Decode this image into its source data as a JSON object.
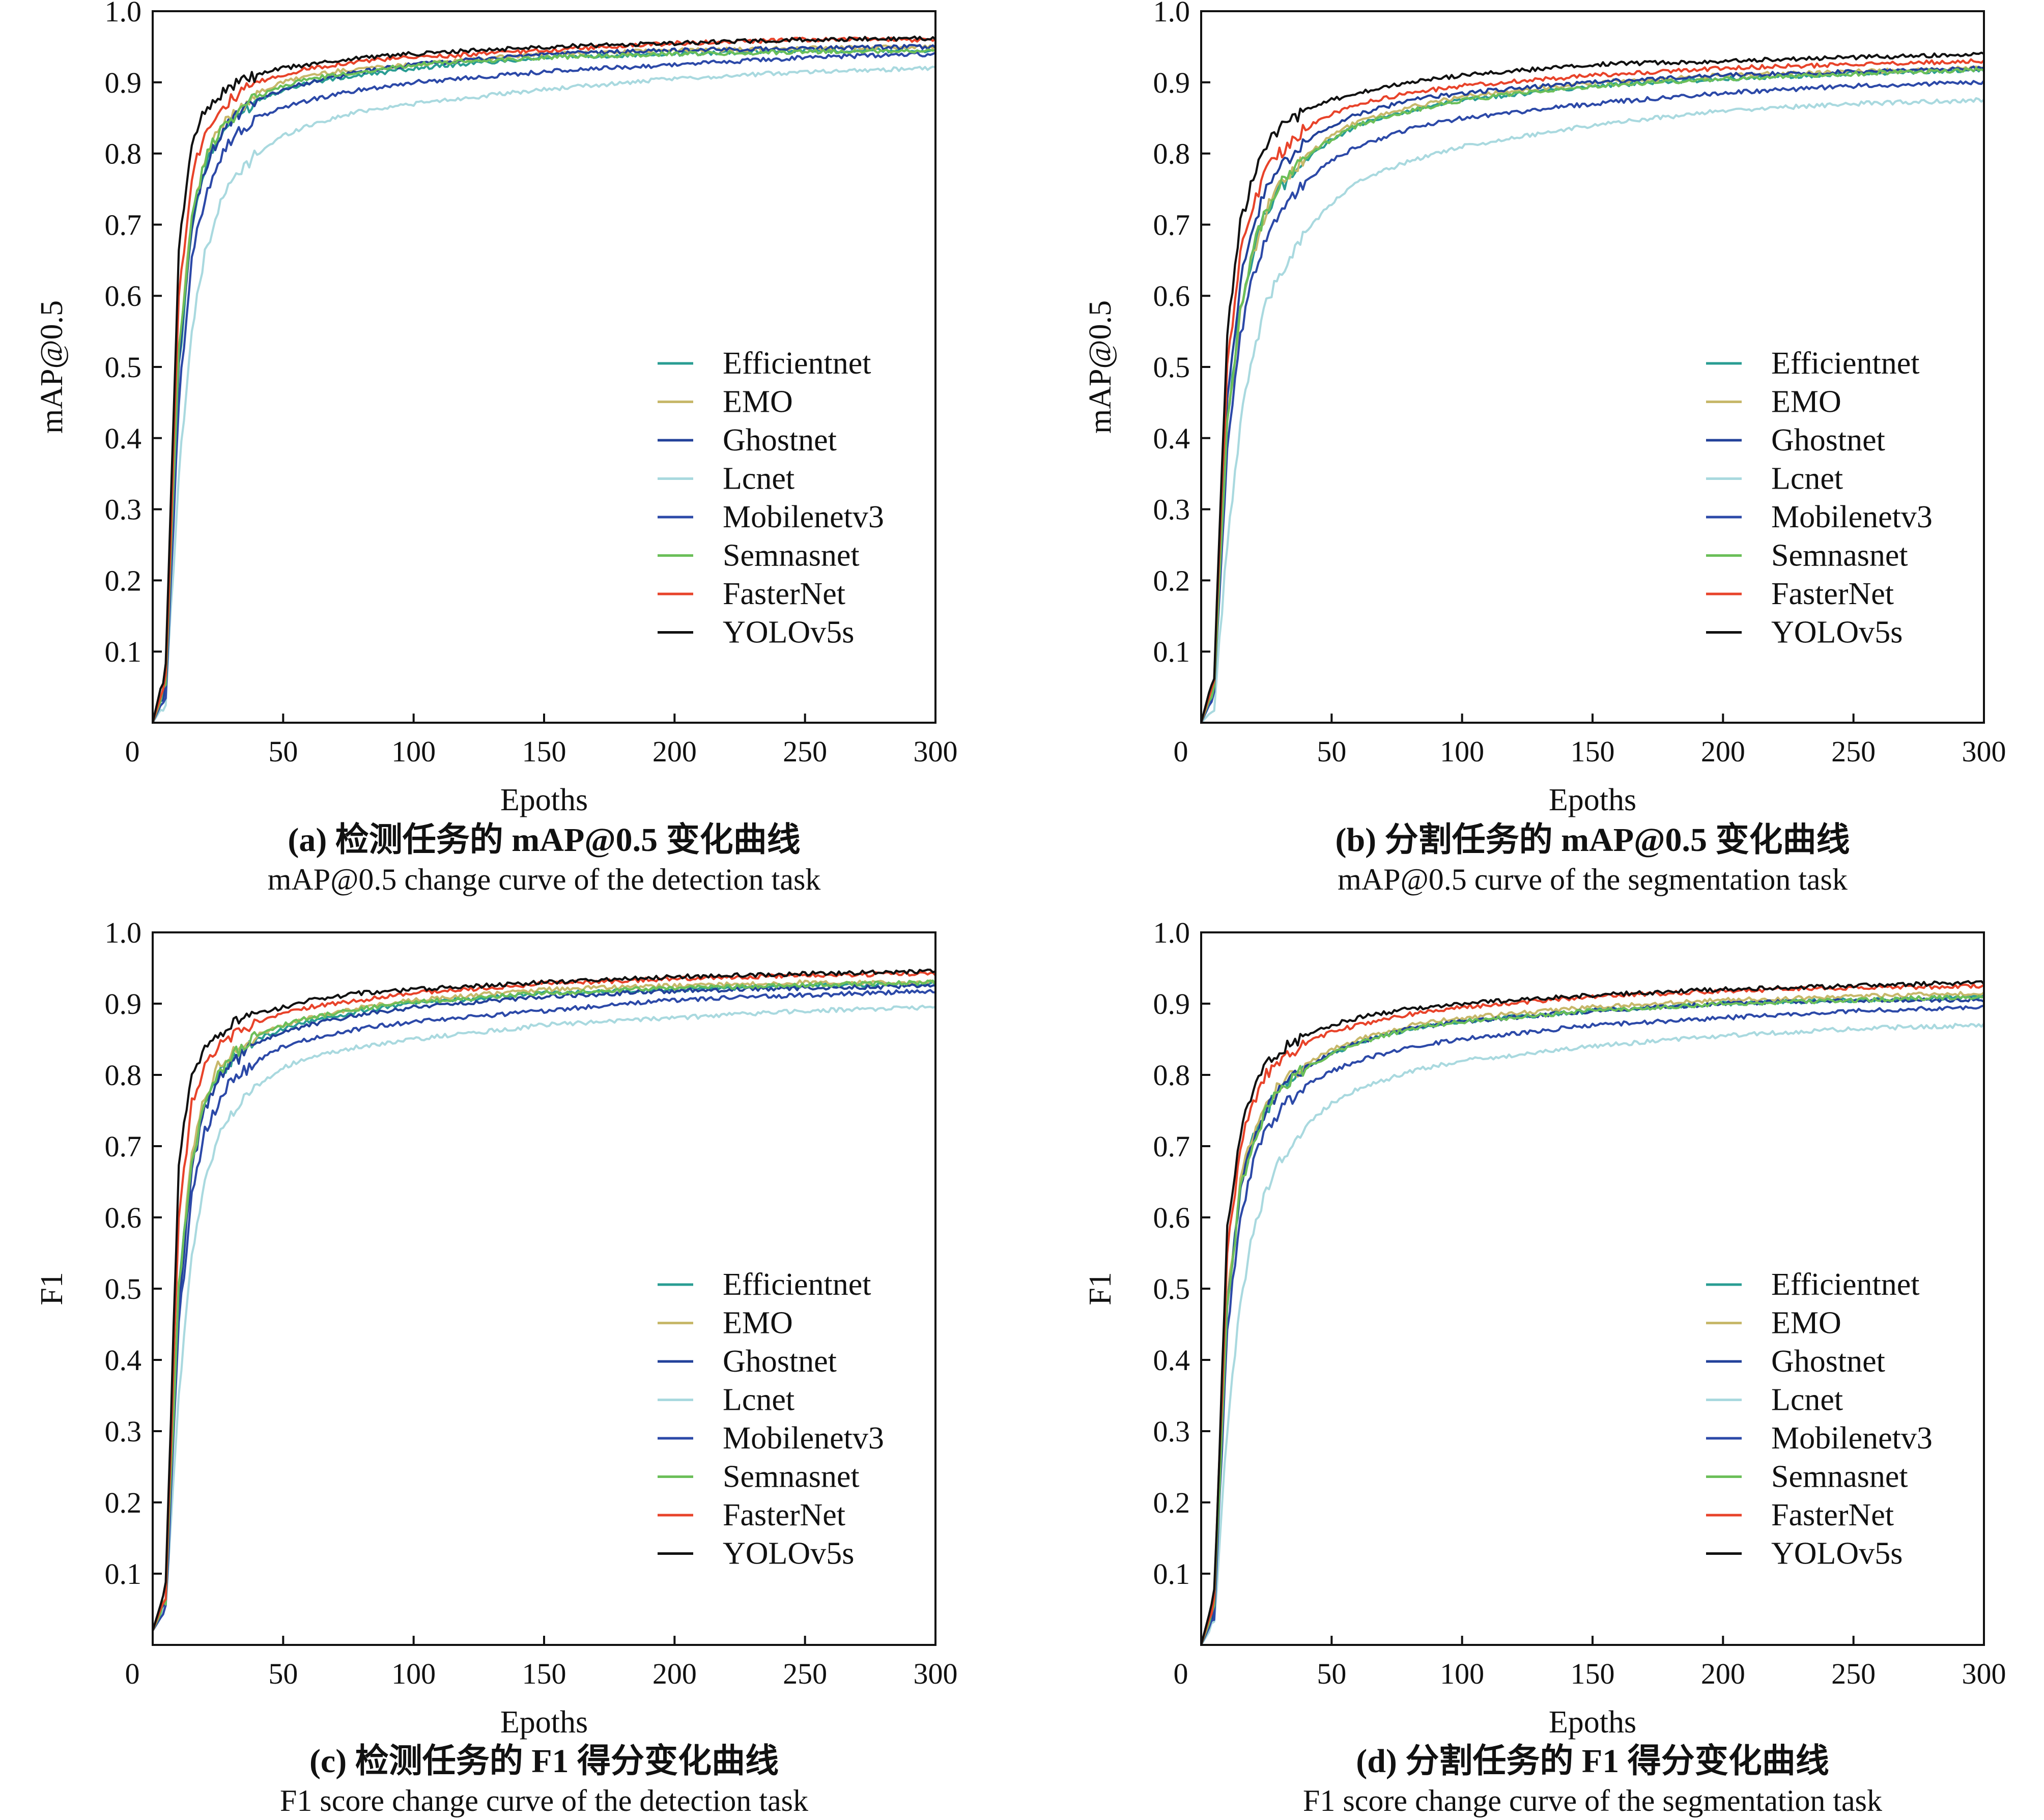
{
  "chart_data": [
    {
      "type": "line",
      "panel": "a",
      "caption_cn": "(a) 检测任务的 mAP@0.5 变化曲线",
      "caption_en": "mAP@0.5 change curve of the detection task",
      "xlabel": "Epoths",
      "ylabel": "mAP@0.5",
      "xlim": [
        0,
        300
      ],
      "ylim": [
        0,
        1.0
      ],
      "xticks": [
        "0",
        "50",
        "100",
        "150",
        "200",
        "250",
        "300"
      ],
      "yticks": [
        "0.1",
        "0.2",
        "0.3",
        "0.4",
        "0.5",
        "0.6",
        "0.7",
        "0.8",
        "0.9",
        "1.0"
      ],
      "grid": false,
      "legend_position": "center-right",
      "x": [
        0,
        5,
        10,
        15,
        20,
        25,
        30,
        40,
        50,
        60,
        80,
        100,
        150,
        200,
        250,
        300
      ],
      "series": [
        {
          "name": "Efficientnet",
          "color": "#2a9d93",
          "values": [
            0.0,
            0.05,
            0.5,
            0.7,
            0.78,
            0.82,
            0.845,
            0.875,
            0.89,
            0.9,
            0.91,
            0.92,
            0.935,
            0.94,
            0.945,
            0.945
          ]
        },
        {
          "name": "EMO",
          "color": "#c7b86a",
          "values": [
            0.0,
            0.05,
            0.52,
            0.71,
            0.79,
            0.83,
            0.855,
            0.885,
            0.9,
            0.91,
            0.92,
            0.925,
            0.94,
            0.945,
            0.948,
            0.95
          ]
        },
        {
          "name": "Ghostnet",
          "color": "#22419a",
          "values": [
            0.0,
            0.05,
            0.5,
            0.7,
            0.78,
            0.82,
            0.845,
            0.875,
            0.89,
            0.9,
            0.915,
            0.925,
            0.94,
            0.945,
            0.948,
            0.95
          ]
        },
        {
          "name": "Lcnet",
          "color": "#a9d9df",
          "values": [
            0.0,
            0.03,
            0.35,
            0.55,
            0.66,
            0.72,
            0.76,
            0.8,
            0.825,
            0.84,
            0.86,
            0.87,
            0.89,
            0.905,
            0.915,
            0.92
          ]
        },
        {
          "name": "Mobilenetv3",
          "color": "#2c49a8",
          "values": [
            0.0,
            0.04,
            0.45,
            0.65,
            0.74,
            0.79,
            0.82,
            0.85,
            0.865,
            0.875,
            0.89,
            0.9,
            0.915,
            0.925,
            0.935,
            0.94
          ]
        },
        {
          "name": "Semnasnet",
          "color": "#6bbf59",
          "values": [
            0.0,
            0.05,
            0.52,
            0.71,
            0.79,
            0.83,
            0.85,
            0.88,
            0.895,
            0.905,
            0.915,
            0.925,
            0.935,
            0.94,
            0.943,
            0.945
          ]
        },
        {
          "name": "FasterNet",
          "color": "#e8432a",
          "values": [
            0.0,
            0.06,
            0.6,
            0.77,
            0.83,
            0.86,
            0.875,
            0.9,
            0.91,
            0.92,
            0.93,
            0.935,
            0.945,
            0.955,
            0.96,
            0.96
          ]
        },
        {
          "name": "YOLOv5s",
          "color": "#111111",
          "values": [
            0.0,
            0.08,
            0.66,
            0.82,
            0.86,
            0.88,
            0.895,
            0.91,
            0.92,
            0.925,
            0.935,
            0.94,
            0.95,
            0.955,
            0.96,
            0.962
          ]
        }
      ]
    },
    {
      "type": "line",
      "panel": "b",
      "caption_cn": "(b) 分割任务的 mAP@0.5 变化曲线",
      "caption_en": "mAP@0.5 curve of the segmentation task",
      "xlabel": "Epoths",
      "ylabel": "mAP@0.5",
      "xlim": [
        0,
        300
      ],
      "ylim": [
        0,
        1.0
      ],
      "xticks": [
        "0",
        "50",
        "100",
        "150",
        "200",
        "250",
        "300"
      ],
      "yticks": [
        "0.1",
        "0.2",
        "0.3",
        "0.4",
        "0.5",
        "0.6",
        "0.7",
        "0.8",
        "0.9",
        "1.0"
      ],
      "grid": false,
      "legend_position": "center-right",
      "x": [
        0,
        5,
        10,
        15,
        20,
        25,
        30,
        40,
        50,
        60,
        80,
        100,
        150,
        200,
        250,
        300
      ],
      "series": [
        {
          "name": "Efficientnet",
          "color": "#2a9d93",
          "values": [
            0.0,
            0.05,
            0.42,
            0.58,
            0.66,
            0.72,
            0.75,
            0.79,
            0.82,
            0.84,
            0.86,
            0.875,
            0.895,
            0.905,
            0.912,
            0.918
          ]
        },
        {
          "name": "EMO",
          "color": "#c7b86a",
          "values": [
            0.0,
            0.05,
            0.42,
            0.58,
            0.66,
            0.72,
            0.755,
            0.795,
            0.825,
            0.845,
            0.865,
            0.88,
            0.9,
            0.91,
            0.915,
            0.92
          ]
        },
        {
          "name": "Ghostnet",
          "color": "#22419a",
          "values": [
            0.0,
            0.05,
            0.45,
            0.62,
            0.7,
            0.75,
            0.78,
            0.815,
            0.84,
            0.855,
            0.875,
            0.885,
            0.9,
            0.91,
            0.915,
            0.92
          ]
        },
        {
          "name": "Lcnet",
          "color": "#a9d9df",
          "values": [
            0.0,
            0.02,
            0.25,
            0.42,
            0.52,
            0.59,
            0.63,
            0.69,
            0.73,
            0.76,
            0.79,
            0.81,
            0.84,
            0.86,
            0.87,
            0.875
          ]
        },
        {
          "name": "Mobilenetv3",
          "color": "#2c49a8",
          "values": [
            0.0,
            0.04,
            0.38,
            0.54,
            0.63,
            0.68,
            0.72,
            0.76,
            0.79,
            0.81,
            0.835,
            0.85,
            0.87,
            0.885,
            0.895,
            0.9
          ]
        },
        {
          "name": "Semnasnet",
          "color": "#6bbf59",
          "values": [
            0.0,
            0.05,
            0.42,
            0.58,
            0.67,
            0.72,
            0.755,
            0.795,
            0.82,
            0.84,
            0.86,
            0.875,
            0.895,
            0.905,
            0.912,
            0.918
          ]
        },
        {
          "name": "FasterNet",
          "color": "#e8432a",
          "values": [
            0.0,
            0.06,
            0.5,
            0.66,
            0.73,
            0.775,
            0.8,
            0.835,
            0.855,
            0.87,
            0.885,
            0.895,
            0.91,
            0.92,
            0.925,
            0.93
          ]
        },
        {
          "name": "YOLOv5s",
          "color": "#111111",
          "values": [
            0.0,
            0.07,
            0.55,
            0.7,
            0.77,
            0.81,
            0.835,
            0.86,
            0.875,
            0.885,
            0.9,
            0.91,
            0.925,
            0.93,
            0.935,
            0.94
          ]
        }
      ]
    },
    {
      "type": "line",
      "panel": "c",
      "caption_cn": "(c) 检测任务的 F1 得分变化曲线",
      "caption_en": "F1 score change curve of the detection task",
      "xlabel": "Epoths",
      "ylabel": "F1",
      "xlim": [
        0,
        300
      ],
      "ylim": [
        0,
        1.0
      ],
      "xticks": [
        "0",
        "50",
        "100",
        "150",
        "200",
        "250",
        "300"
      ],
      "yticks": [
        "0.1",
        "0.2",
        "0.3",
        "0.4",
        "0.5",
        "0.6",
        "0.7",
        "0.8",
        "0.9",
        "1.0"
      ],
      "grid": false,
      "legend_position": "center-right",
      "x": [
        0,
        5,
        10,
        15,
        20,
        25,
        30,
        40,
        50,
        60,
        80,
        100,
        150,
        200,
        250,
        300
      ],
      "series": [
        {
          "name": "Efficientnet",
          "color": "#2a9d93",
          "values": [
            0.02,
            0.06,
            0.5,
            0.68,
            0.76,
            0.8,
            0.82,
            0.85,
            0.865,
            0.875,
            0.89,
            0.9,
            0.915,
            0.92,
            0.925,
            0.928
          ]
        },
        {
          "name": "EMO",
          "color": "#c7b86a",
          "values": [
            0.02,
            0.06,
            0.5,
            0.69,
            0.77,
            0.81,
            0.83,
            0.855,
            0.87,
            0.88,
            0.895,
            0.905,
            0.92,
            0.925,
            0.93,
            0.93
          ]
        },
        {
          "name": "Ghostnet",
          "color": "#22419a",
          "values": [
            0.02,
            0.06,
            0.48,
            0.67,
            0.75,
            0.79,
            0.815,
            0.845,
            0.86,
            0.87,
            0.885,
            0.895,
            0.91,
            0.918,
            0.922,
            0.925
          ]
        },
        {
          "name": "Lcnet",
          "color": "#a9d9df",
          "values": [
            0.02,
            0.05,
            0.35,
            0.55,
            0.65,
            0.71,
            0.745,
            0.785,
            0.81,
            0.825,
            0.84,
            0.85,
            0.87,
            0.88,
            0.89,
            0.895
          ]
        },
        {
          "name": "Mobilenetv3",
          "color": "#2c49a8",
          "values": [
            0.02,
            0.05,
            0.45,
            0.63,
            0.72,
            0.76,
            0.79,
            0.82,
            0.84,
            0.85,
            0.865,
            0.875,
            0.89,
            0.905,
            0.912,
            0.918
          ]
        },
        {
          "name": "Semnasnet",
          "color": "#6bbf59",
          "values": [
            0.02,
            0.06,
            0.5,
            0.68,
            0.76,
            0.8,
            0.825,
            0.855,
            0.87,
            0.88,
            0.893,
            0.902,
            0.915,
            0.922,
            0.926,
            0.93
          ]
        },
        {
          "name": "FasterNet",
          "color": "#e8432a",
          "values": [
            0.02,
            0.07,
            0.6,
            0.76,
            0.81,
            0.84,
            0.855,
            0.875,
            0.885,
            0.895,
            0.905,
            0.915,
            0.928,
            0.935,
            0.94,
            0.942
          ]
        },
        {
          "name": "YOLOv5s",
          "color": "#111111",
          "values": [
            0.02,
            0.08,
            0.68,
            0.8,
            0.835,
            0.855,
            0.87,
            0.885,
            0.895,
            0.905,
            0.915,
            0.92,
            0.93,
            0.938,
            0.942,
            0.945
          ]
        }
      ]
    },
    {
      "type": "line",
      "panel": "d",
      "caption_cn": "(d) 分割任务的 F1 得分变化曲线",
      "caption_en": "F1 score change curve of the segmentation task",
      "xlabel": "Epoths",
      "ylabel": "F1",
      "xlim": [
        0,
        300
      ],
      "ylim": [
        0,
        1.0
      ],
      "xticks": [
        "0",
        "50",
        "100",
        "150",
        "200",
        "250",
        "300"
      ],
      "yticks": [
        "0.1",
        "0.2",
        "0.3",
        "0.4",
        "0.5",
        "0.6",
        "0.7",
        "0.8",
        "0.9",
        "1.0"
      ],
      "grid": false,
      "legend_position": "center-right",
      "x": [
        0,
        5,
        10,
        15,
        20,
        25,
        30,
        40,
        50,
        60,
        80,
        100,
        150,
        200,
        250,
        300
      ],
      "series": [
        {
          "name": "Efficientnet",
          "color": "#2a9d93",
          "values": [
            0.0,
            0.05,
            0.48,
            0.64,
            0.71,
            0.75,
            0.78,
            0.81,
            0.83,
            0.845,
            0.865,
            0.875,
            0.89,
            0.9,
            0.905,
            0.91
          ]
        },
        {
          "name": "EMO",
          "color": "#c7b86a",
          "values": [
            0.0,
            0.05,
            0.48,
            0.65,
            0.72,
            0.76,
            0.785,
            0.815,
            0.835,
            0.85,
            0.87,
            0.88,
            0.895,
            0.905,
            0.91,
            0.915
          ]
        },
        {
          "name": "Ghostnet",
          "color": "#22419a",
          "values": [
            0.0,
            0.05,
            0.47,
            0.64,
            0.71,
            0.75,
            0.78,
            0.81,
            0.83,
            0.845,
            0.865,
            0.875,
            0.89,
            0.9,
            0.905,
            0.905
          ]
        },
        {
          "name": "Lcnet",
          "color": "#a9d9df",
          "values": [
            0.0,
            0.03,
            0.3,
            0.48,
            0.58,
            0.64,
            0.68,
            0.73,
            0.76,
            0.78,
            0.805,
            0.82,
            0.84,
            0.855,
            0.865,
            0.87
          ]
        },
        {
          "name": "Mobilenetv3",
          "color": "#2c49a8",
          "values": [
            0.0,
            0.04,
            0.44,
            0.6,
            0.68,
            0.72,
            0.75,
            0.785,
            0.805,
            0.82,
            0.84,
            0.85,
            0.87,
            0.88,
            0.89,
            0.895
          ]
        },
        {
          "name": "Semnasnet",
          "color": "#6bbf59",
          "values": [
            0.0,
            0.05,
            0.47,
            0.64,
            0.71,
            0.75,
            0.78,
            0.81,
            0.83,
            0.845,
            0.865,
            0.875,
            0.89,
            0.9,
            0.905,
            0.91
          ]
        },
        {
          "name": "FasterNet",
          "color": "#e8432a",
          "values": [
            0.0,
            0.06,
            0.55,
            0.7,
            0.76,
            0.8,
            0.82,
            0.845,
            0.86,
            0.87,
            0.885,
            0.895,
            0.91,
            0.918,
            0.922,
            0.925
          ]
        },
        {
          "name": "YOLOv5s",
          "color": "#111111",
          "values": [
            0.0,
            0.07,
            0.58,
            0.72,
            0.78,
            0.815,
            0.835,
            0.855,
            0.87,
            0.88,
            0.893,
            0.9,
            0.912,
            0.92,
            0.925,
            0.93
          ]
        }
      ]
    }
  ]
}
